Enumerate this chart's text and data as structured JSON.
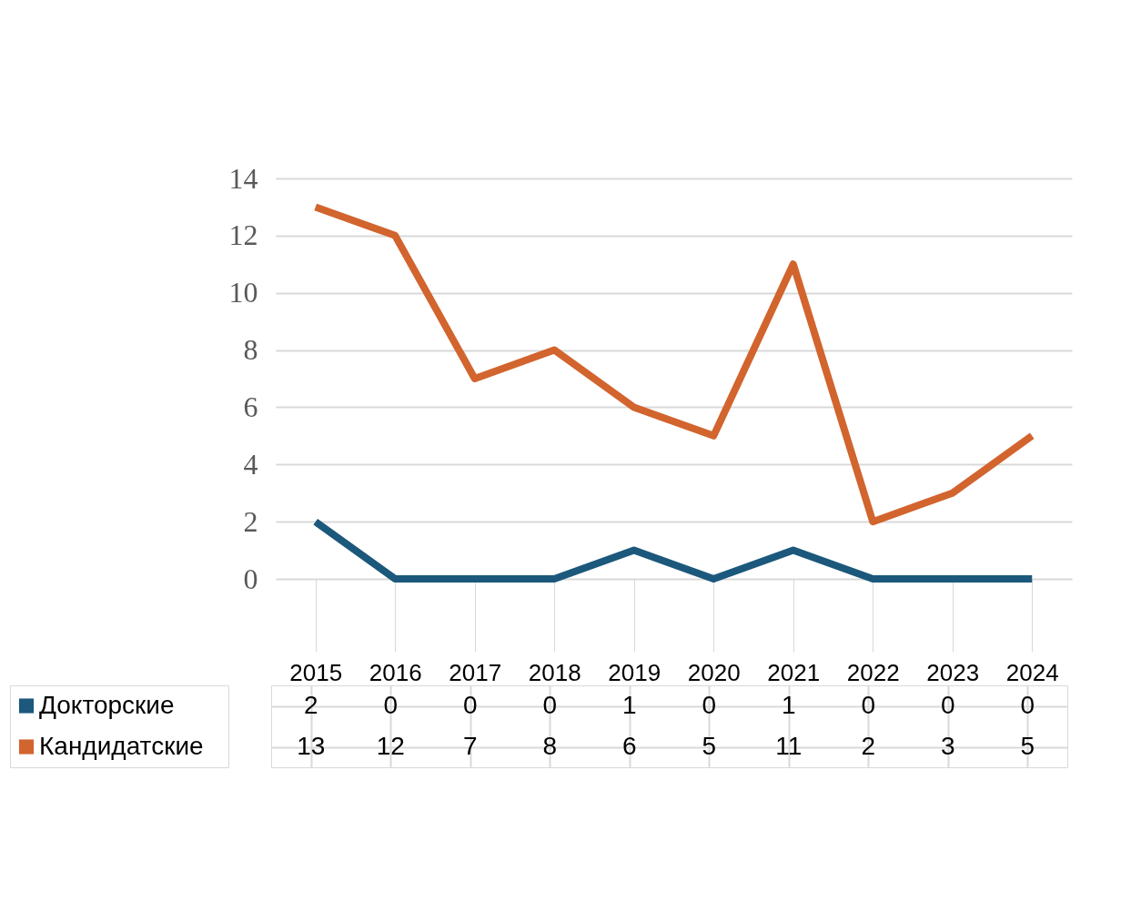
{
  "chart_data": {
    "type": "line",
    "categories": [
      "2015",
      "2016",
      "2017",
      "2018",
      "2019",
      "2020",
      "2021",
      "2022",
      "2023",
      "2024"
    ],
    "series": [
      {
        "name": "Докторские",
        "color": "#1b587c",
        "values": [
          2,
          0,
          0,
          0,
          1,
          0,
          1,
          0,
          0,
          0
        ]
      },
      {
        "name": "Кандидатские",
        "color": "#d2642e",
        "values": [
          13,
          12,
          7,
          8,
          6,
          5,
          11,
          2,
          3,
          5
        ]
      }
    ],
    "ylim": [
      0,
      14
    ],
    "yticks": [
      0,
      2,
      4,
      6,
      8,
      10,
      12,
      14
    ],
    "grid": "y",
    "legend": "bottom",
    "data_labels": true
  }
}
